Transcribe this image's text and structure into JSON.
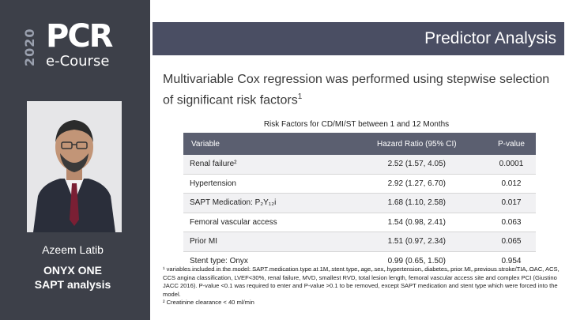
{
  "sidebar": {
    "logo": {
      "year": "2020",
      "brand": "PCR",
      "product": "e-Course"
    },
    "speaker_name": "Azeem Latib",
    "study_line1": "ONYX ONE",
    "study_line2": "SAPT analysis"
  },
  "header": {
    "title": "Predictor Analysis"
  },
  "intro": {
    "text": "Multivariable Cox regression was performed using stepwise selection of significant risk factors",
    "ref": "1"
  },
  "table": {
    "caption": "Risk Factors for CD/MI/ST between 1 and 12 Months",
    "headers": {
      "variable": "Variable",
      "hazard_ratio": "Hazard Ratio (95% CI)",
      "p_value": "P-value"
    },
    "rows": [
      {
        "variable": "Renal failure²",
        "hazard_ratio": "2.52 (1.57, 4.05)",
        "p_value": "0.0001"
      },
      {
        "variable": "Hypertension",
        "hazard_ratio": "2.92 (1.27, 6.70)",
        "p_value": "0.012"
      },
      {
        "variable": "SAPT Medication: P₂Y₁₂i",
        "hazard_ratio": "1.68 (1.10, 2.58)",
        "p_value": "0.017"
      },
      {
        "variable": "Femoral vascular access",
        "hazard_ratio": "1.54 (0.98, 2.41)",
        "p_value": "0.063"
      },
      {
        "variable": "Prior MI",
        "hazard_ratio": "1.51 (0.97, 2.34)",
        "p_value": "0.065"
      },
      {
        "variable": "Stent type: Onyx",
        "hazard_ratio": "0.99 (0.65, 1.50)",
        "p_value": "0.954"
      }
    ]
  },
  "footnotes": {
    "note1": "¹ variables included in the model: SAPT medication type at 1M, stent type, age, sex, hypertension, diabetes, prior MI, previous stroke/TIA, OAC, ACS, CCS angina classification, LVEF<30%, renal failure, MVD, smallest RVD, total lesion length, femoral vascular access site and complex PCI (Giustino JACC 2016). P-value <0.1 was required to enter and P-value >0.1 to be removed, except SAPT medication and stent type which were forced into the model.",
    "note2": "² Creatinine clearance < 40 ml/min"
  },
  "colors": {
    "sidebar": "#3d4049",
    "title_bar": "#4a4e63",
    "table_header": "#5b5f70"
  },
  "icons": {
    "speaker_photo": "person-portrait"
  }
}
